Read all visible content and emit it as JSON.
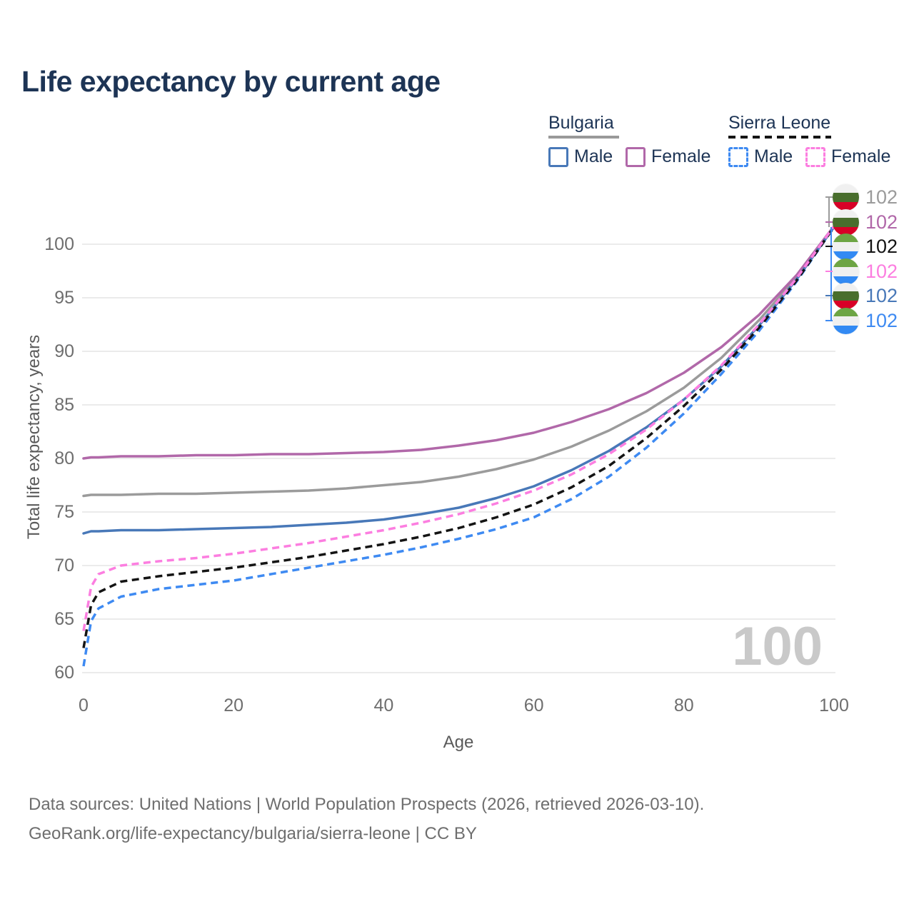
{
  "title": "Life expectancy by current age",
  "legend": {
    "groups": [
      {
        "label": "Bulgaria",
        "line_style": "solid",
        "line_color": "#999999",
        "items": [
          {
            "label": "Male",
            "color": "#4878b8",
            "dashed": false
          },
          {
            "label": "Female",
            "color": "#b168a9",
            "dashed": false
          }
        ]
      },
      {
        "label": "Sierra Leone",
        "line_style": "dashed",
        "line_color": "#141414",
        "items": [
          {
            "label": "Male",
            "color": "#3e8af2",
            "dashed": true
          },
          {
            "label": "Female",
            "color": "#fc7ee0",
            "dashed": true
          }
        ]
      }
    ]
  },
  "chart_data": {
    "type": "line",
    "title": "Life expectancy by current age",
    "xlabel": "Age",
    "ylabel": "Total life expectancy, years",
    "xlim": [
      0,
      100
    ],
    "ylim": [
      60,
      102
    ],
    "xticks": [
      0,
      20,
      40,
      60,
      80,
      100
    ],
    "yticks": [
      60,
      65,
      70,
      75,
      80,
      85,
      90,
      95,
      100
    ],
    "grid": "horizontal",
    "x": [
      0,
      1,
      2,
      5,
      10,
      15,
      20,
      25,
      30,
      35,
      40,
      45,
      50,
      55,
      60,
      65,
      70,
      75,
      80,
      85,
      90,
      95,
      100
    ],
    "series": [
      {
        "id": "bulgaria_all",
        "country": "Bulgaria",
        "sex": "all",
        "color": "#9b9b9b",
        "dashed": false,
        "end_label": "102",
        "flag": "bulgaria",
        "values": [
          76.5,
          76.6,
          76.6,
          76.6,
          76.7,
          76.7,
          76.8,
          76.9,
          77.0,
          77.2,
          77.5,
          77.8,
          78.3,
          79.0,
          79.9,
          81.1,
          82.6,
          84.4,
          86.6,
          89.4,
          92.9,
          96.9,
          101.6
        ]
      },
      {
        "id": "bulgaria_female",
        "country": "Bulgaria",
        "sex": "female",
        "color": "#b168a9",
        "dashed": false,
        "end_label": "102",
        "flag": "bulgaria",
        "values": [
          80.0,
          80.1,
          80.1,
          80.2,
          80.2,
          80.3,
          80.3,
          80.4,
          80.4,
          80.5,
          80.6,
          80.8,
          81.2,
          81.7,
          82.4,
          83.4,
          84.6,
          86.1,
          88.0,
          90.4,
          93.4,
          97.1,
          101.7
        ]
      },
      {
        "id": "bulgaria_male",
        "country": "Bulgaria",
        "sex": "male",
        "color": "#4878b8",
        "dashed": false,
        "end_label": "102",
        "flag": "bulgaria",
        "values": [
          73.0,
          73.2,
          73.2,
          73.3,
          73.3,
          73.4,
          73.5,
          73.6,
          73.8,
          74.0,
          74.3,
          74.8,
          75.4,
          76.3,
          77.4,
          78.9,
          80.7,
          82.9,
          85.5,
          88.6,
          92.4,
          96.7,
          101.6
        ]
      },
      {
        "id": "sl_male",
        "country": "Sierra Leone",
        "sex": "male",
        "color": "#3e8af2",
        "dashed": true,
        "end_label": "102",
        "flag": "sierra_leone",
        "values": [
          60.6,
          64.8,
          66.0,
          67.1,
          67.8,
          68.2,
          68.6,
          69.2,
          69.8,
          70.4,
          71.0,
          71.7,
          72.5,
          73.4,
          74.5,
          76.2,
          78.3,
          81.0,
          84.2,
          87.9,
          91.9,
          96.5,
          101.6
        ]
      },
      {
        "id": "sl_all",
        "country": "Sierra Leone",
        "sex": "all",
        "color": "#141414",
        "dashed": true,
        "end_label": "102",
        "flag": "sierra_leone",
        "values": [
          62.3,
          66.3,
          67.5,
          68.5,
          69.0,
          69.4,
          69.8,
          70.3,
          70.8,
          71.4,
          72.0,
          72.7,
          73.5,
          74.5,
          75.7,
          77.3,
          79.3,
          81.9,
          84.9,
          88.3,
          92.2,
          96.6,
          101.6
        ]
      },
      {
        "id": "sl_female",
        "country": "Sierra Leone",
        "sex": "female",
        "color": "#fc7ee0",
        "dashed": true,
        "end_label": "102",
        "flag": "sierra_leone",
        "values": [
          63.9,
          68.0,
          69.2,
          70.0,
          70.4,
          70.7,
          71.1,
          71.6,
          72.1,
          72.7,
          73.3,
          74.0,
          74.8,
          75.8,
          77.0,
          78.5,
          80.4,
          82.7,
          85.5,
          88.7,
          92.5,
          96.8,
          101.7
        ]
      }
    ],
    "end_label_rows": [
      "bulgaria_all",
      "bulgaria_female",
      "sl_all",
      "sl_female",
      "bulgaria_male",
      "sl_male"
    ],
    "legend_position": "top-right"
  },
  "flags": {
    "bulgaria": [
      "#F0F0F0",
      "#496E2D",
      "#D80027"
    ],
    "sierra_leone": [
      "#6DA544",
      "#F0F0F0",
      "#338AF3"
    ]
  },
  "watermark": {
    "value": "100"
  },
  "footer": {
    "line1": "Data sources: United Nations | World Population Prospects (2026, retrieved 2026-03-10).",
    "line2": "GeoRank.org/life-expectancy/bulgaria/sierra-leone | CC BY"
  }
}
